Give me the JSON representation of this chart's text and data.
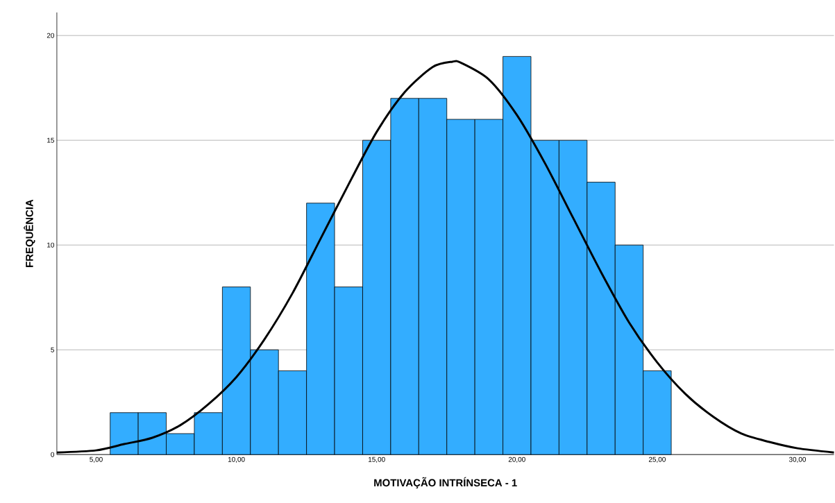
{
  "chart_data": {
    "type": "histogram",
    "xlabel": "MOTIVAÇÃO INTRÍNSECA - 1",
    "ylabel": "FREQUÊNCIA",
    "bins": [
      5.5,
      6.5,
      7.5,
      8.5,
      9.5,
      10.5,
      11.5,
      12.5,
      13.5,
      14.5,
      15.5,
      16.5,
      17.5,
      18.5,
      19.5,
      20.5,
      21.5,
      22.5,
      23.5,
      24.5,
      25.5
    ],
    "values": [
      2,
      2,
      1,
      2,
      8,
      5,
      4,
      12,
      8,
      15,
      17,
      17,
      16,
      16,
      19,
      15,
      15,
      13,
      10,
      4
    ],
    "color": "#33adff",
    "series": [
      {
        "type": "line",
        "color": "#000000",
        "x": [
          3.6,
          5,
          6,
          7,
          8,
          9,
          10,
          11,
          12,
          13,
          14,
          15,
          16,
          17,
          17.7,
          18,
          19,
          20,
          21,
          22,
          23,
          24,
          25,
          26,
          27,
          28,
          29,
          30,
          31.3
        ],
        "values": [
          0.1,
          0.2,
          0.5,
          0.8,
          1.4,
          2.4,
          3.7,
          5.5,
          7.7,
          10.3,
          12.9,
          15.4,
          17.3,
          18.5,
          18.75,
          18.7,
          17.9,
          16.2,
          13.9,
          11.3,
          8.7,
          6.3,
          4.4,
          2.9,
          1.8,
          1.0,
          0.6,
          0.3,
          0.1
        ]
      }
    ],
    "xlim": [
      3.6,
      31.3
    ],
    "ylim": [
      0,
      21.1
    ],
    "xticks": [
      {
        "value": 5,
        "label": "5,00"
      },
      {
        "value": 10,
        "label": "10,00"
      },
      {
        "value": 15,
        "label": "15,00"
      },
      {
        "value": 20,
        "label": "20,00"
      },
      {
        "value": 25,
        "label": "25,00"
      },
      {
        "value": 30,
        "label": "30,00"
      }
    ],
    "yticks": [
      0,
      5,
      10,
      15,
      20
    ],
    "grid": "y"
  }
}
